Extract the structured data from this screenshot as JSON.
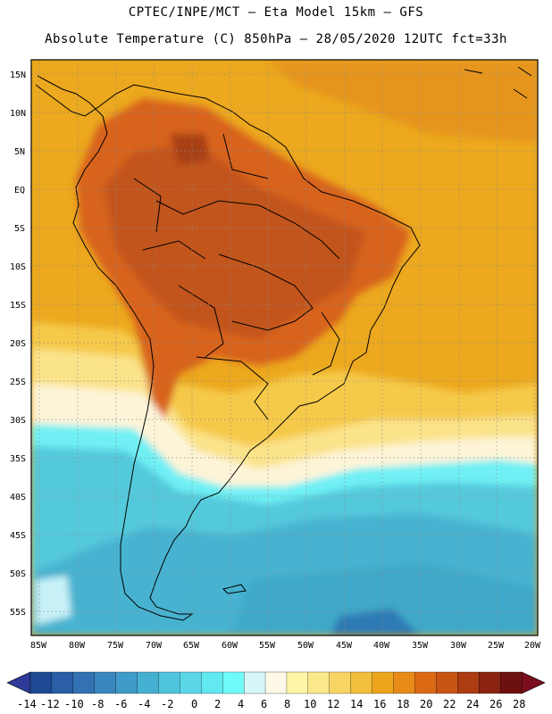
{
  "header": {
    "line1": "CPTEC/INPE/MCT —  Eta Model 15km — GFS",
    "line2": "Absolute Temperature (C) 850hPa — 28/05/2020 12UTC fct=33h"
  },
  "map": {
    "lat_labels": [
      "15N",
      "10N",
      "5N",
      "EQ",
      "5S",
      "10S",
      "15S",
      "20S",
      "25S",
      "30S",
      "35S",
      "40S",
      "45S",
      "50S",
      "55S"
    ],
    "lon_labels": [
      "85W",
      "80W",
      "75W",
      "70W",
      "65W",
      "60W",
      "55W",
      "50W",
      "45W",
      "40W",
      "35W",
      "30W",
      "25W",
      "20W"
    ],
    "regions": [
      {
        "name": "region-cold-south",
        "color": "#55c9dc",
        "bin": 8
      },
      {
        "name": "region-very-cold-core",
        "color": "#3fa8c8",
        "bin": 6
      },
      {
        "name": "region-cool-band",
        "color": "#fdf4d8",
        "bin": 12
      },
      {
        "name": "region-mild-band",
        "color": "#fbe38a",
        "bin": 16
      },
      {
        "name": "region-warm-ocean",
        "color": "#eca81e",
        "bin": 19
      },
      {
        "name": "region-hot-continent",
        "color": "#d8641c",
        "bin": 22
      },
      {
        "name": "region-very-hot",
        "color": "#c2541a",
        "bin": 24
      }
    ]
  },
  "legend": {
    "labels": [
      "-14",
      "-12",
      "-10",
      "-8",
      "-6",
      "-4",
      "-2",
      "0",
      "2",
      "4",
      "6",
      "8",
      "10",
      "12",
      "14",
      "16",
      "18",
      "20",
      "22",
      "24",
      "26",
      "28"
    ],
    "colors": [
      "#1e4a94",
      "#2a5ea6",
      "#3272b2",
      "#3a86be",
      "#3f9bc8",
      "#46b0d2",
      "#4fc4dc",
      "#5ad6e6",
      "#62e8f0",
      "#70fbfb",
      "#d6f6fa",
      "#fef9e6",
      "#fef6a6",
      "#fce98c",
      "#f8d563",
      "#f2bf3c",
      "#eda51d",
      "#e78a18",
      "#dc6a15",
      "#c85414",
      "#ac3c12",
      "#8a2410",
      "#6c1010"
    ],
    "left_arrow_color": "#2e3b98",
    "right_arrow_color": "#7a0e1e"
  }
}
